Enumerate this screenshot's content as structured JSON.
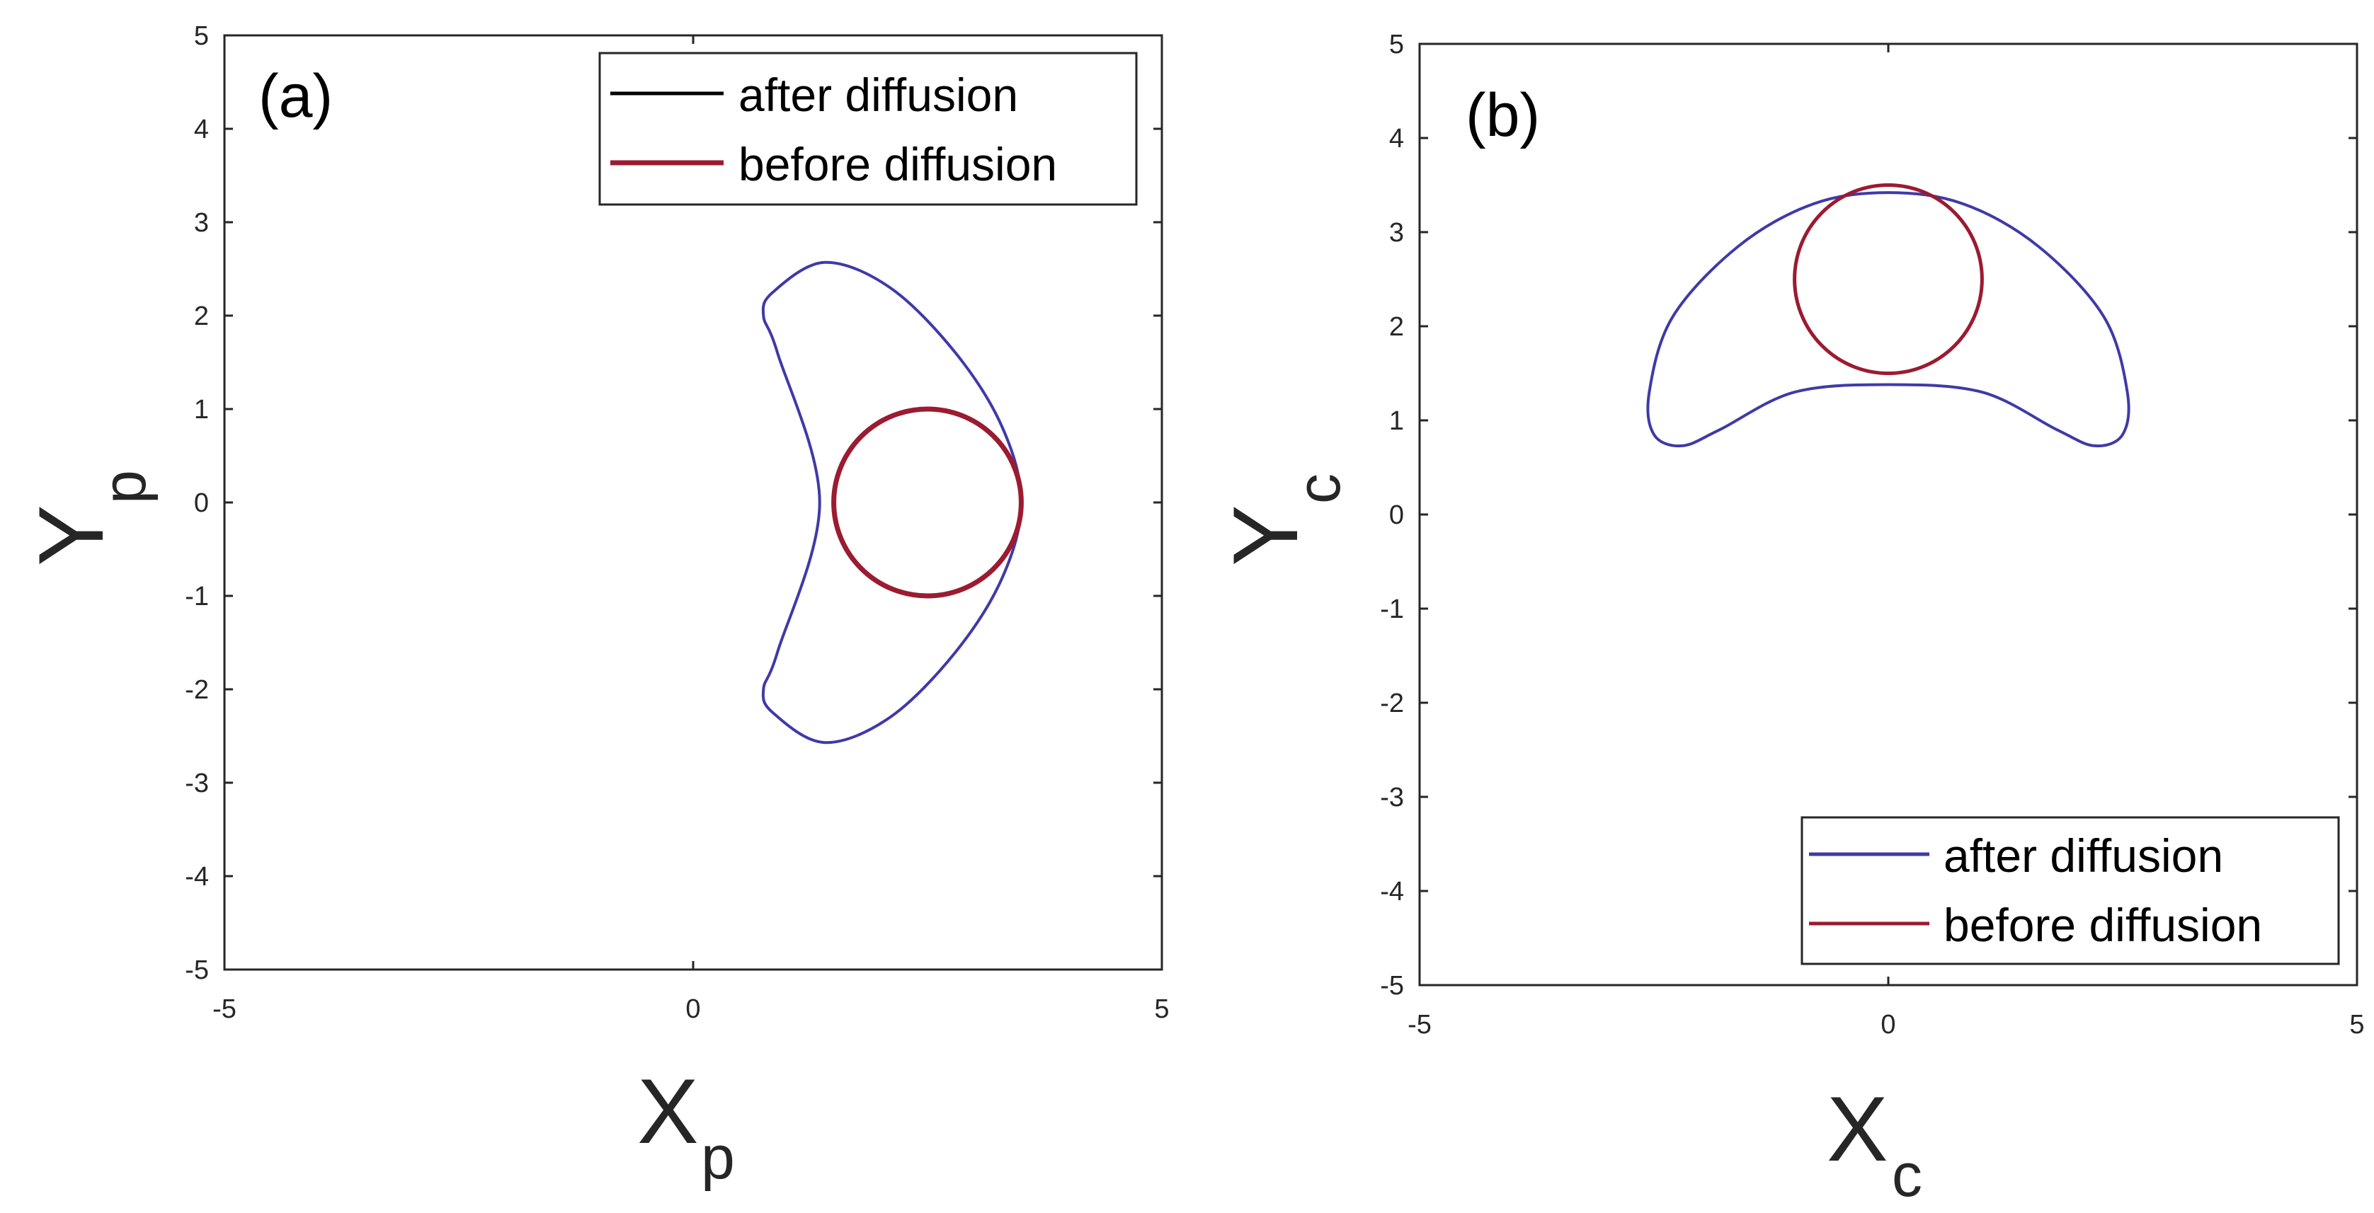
{
  "colors": {
    "after_diffusion": "#3f3aa8",
    "before_diffusion": "#9b1b30",
    "legend_after_a": "#000000",
    "axes": "#262626"
  },
  "chart_data": [
    {
      "type": "line",
      "panel_label": "(a)",
      "xlabel": "X",
      "xlabel_sub": "p",
      "ylabel": "Y",
      "ylabel_sub": "p",
      "xlim": [
        -5,
        5
      ],
      "ylim": [
        -5,
        5
      ],
      "xticks": [
        "-5",
        "0",
        "5"
      ],
      "yticks": [
        "5",
        "4",
        "3",
        "2",
        "1",
        "0",
        "-1",
        "-2",
        "-3",
        "-4",
        "-5"
      ],
      "legend": {
        "position": "top-right",
        "entries": [
          "after diffusion",
          "before diffusion"
        ]
      },
      "series": [
        {
          "name": "after diffusion",
          "shape": "crescent",
          "x": [
            1.4,
            2.1,
            2.8,
            3.3,
            3.5,
            3.3,
            2.8,
            2.1,
            1.4,
            0.85,
            0.75,
            0.9,
            1.35,
            0.9,
            0.75,
            0.85,
            1.4
          ],
          "y": [
            2.57,
            2.3,
            1.6,
            0.8,
            0.0,
            -0.8,
            -1.6,
            -2.3,
            -2.57,
            -2.25,
            -2.0,
            -1.6,
            0.0,
            1.6,
            2.0,
            2.25,
            2.57
          ]
        },
        {
          "name": "before diffusion",
          "shape": "circle",
          "cx": 2.5,
          "cy": 0.0,
          "r": 1.0
        }
      ]
    },
    {
      "type": "line",
      "panel_label": "(b)",
      "xlabel": "X",
      "xlabel_sub": "c",
      "ylabel": "Y",
      "ylabel_sub": "c",
      "xlim": [
        -5,
        5
      ],
      "ylim": [
        -5,
        5
      ],
      "xticks": [
        "-5",
        "0",
        "5"
      ],
      "yticks": [
        "5",
        "4",
        "3",
        "2",
        "1",
        "0",
        "-1",
        "-2",
        "-3",
        "-4",
        "-5"
      ],
      "legend": {
        "position": "bottom-right",
        "entries": [
          "after diffusion",
          "before diffusion"
        ]
      },
      "series": [
        {
          "name": "after diffusion",
          "shape": "crescent",
          "x": [
            0.0,
            0.8,
            1.6,
            2.3,
            2.55,
            2.5,
            2.2,
            1.8,
            1.0,
            0.0,
            -1.0,
            -1.8,
            -2.2,
            -2.5,
            -2.55,
            -2.3,
            -1.6,
            -0.8,
            0.0
          ],
          "y": [
            3.42,
            3.3,
            2.85,
            2.1,
            1.3,
            0.85,
            0.73,
            0.9,
            1.3,
            1.38,
            1.3,
            0.9,
            0.73,
            0.85,
            1.3,
            2.1,
            2.85,
            3.3,
            3.42
          ]
        },
        {
          "name": "before diffusion",
          "shape": "circle",
          "cx": 0.0,
          "cy": 2.5,
          "r": 1.0
        }
      ]
    }
  ]
}
